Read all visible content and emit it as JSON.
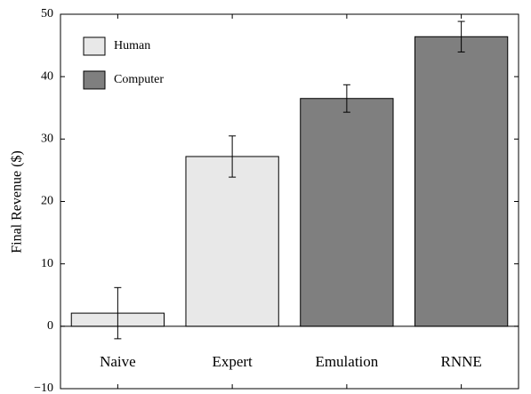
{
  "chart_data": {
    "type": "bar",
    "y_label": "Final Revenue ($)",
    "categories": [
      "Naive",
      "Expert",
      "Emulation",
      "RNNE"
    ],
    "series": [
      {
        "name": "Human",
        "color": "#e8e8e8",
        "values": [
          2.1,
          27.2,
          null,
          null
        ],
        "errors": [
          4.1,
          3.3,
          null,
          null
        ]
      },
      {
        "name": "Computer",
        "color": "#7f7f7f",
        "values": [
          null,
          null,
          36.5,
          46.4
        ],
        "errors": [
          null,
          null,
          2.2,
          2.45
        ]
      }
    ],
    "ylim": [
      -10,
      50
    ],
    "yticks": [
      {
        "value": -10,
        "label": "−10"
      },
      0,
      10,
      20,
      30,
      40,
      50
    ],
    "legend": "upper left"
  }
}
